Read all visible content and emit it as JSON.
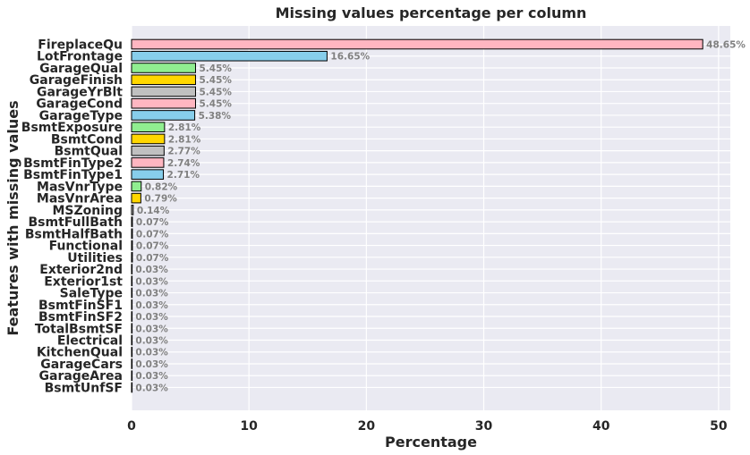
{
  "chart_data": {
    "type": "bar",
    "orientation": "horizontal",
    "title": "Missing values percentage per column",
    "xlabel": "Percentage",
    "ylabel": "Features with missing values",
    "xlim": [
      0,
      51
    ],
    "xticks": [
      0,
      10,
      20,
      30,
      40,
      50
    ],
    "grid": true,
    "legend": "none",
    "categories": [
      "FireplaceQu",
      "LotFrontage",
      "GarageQual",
      "GarageFinish",
      "GarageYrBlt",
      "GarageCond",
      "GarageType",
      "BsmtExposure",
      "BsmtCond",
      "BsmtQual",
      "BsmtFinType2",
      "BsmtFinType1",
      "MasVnrType",
      "MasVnrArea",
      "MSZoning",
      "BsmtFullBath",
      "BsmtHalfBath",
      "Functional",
      "Utilities",
      "Exterior2nd",
      "Exterior1st",
      "SaleType",
      "BsmtFinSF1",
      "BsmtFinSF2",
      "TotalBsmtSF",
      "Electrical",
      "KitchenQual",
      "GarageCars",
      "GarageArea",
      "BsmtUnfSF"
    ],
    "values": [
      48.65,
      16.65,
      5.45,
      5.45,
      5.45,
      5.45,
      5.38,
      2.81,
      2.81,
      2.77,
      2.74,
      2.71,
      0.82,
      0.79,
      0.14,
      0.07,
      0.07,
      0.07,
      0.07,
      0.03,
      0.03,
      0.03,
      0.03,
      0.03,
      0.03,
      0.03,
      0.03,
      0.03,
      0.03,
      0.03
    ],
    "value_labels": [
      "48.65%",
      "16.65%",
      "5.45%",
      "5.45%",
      "5.45%",
      "5.45%",
      "5.38%",
      "2.81%",
      "2.81%",
      "2.77%",
      "2.74%",
      "2.71%",
      "0.82%",
      "0.79%",
      "0.14%",
      "0.07%",
      "0.07%",
      "0.07%",
      "0.07%",
      "0.03%",
      "0.03%",
      "0.03%",
      "0.03%",
      "0.03%",
      "0.03%",
      "0.03%",
      "0.03%",
      "0.03%",
      "0.03%",
      "0.03%"
    ],
    "bar_color_cycle": [
      "#ffb6c1",
      "#87ceeb",
      "#90ee90",
      "#ffd700",
      "#c0c0c0"
    ],
    "bar_edge_color": "#000000",
    "background_color": "#eaeaf2",
    "grid_color": "#ffffff",
    "data_label_color": "#808080"
  }
}
